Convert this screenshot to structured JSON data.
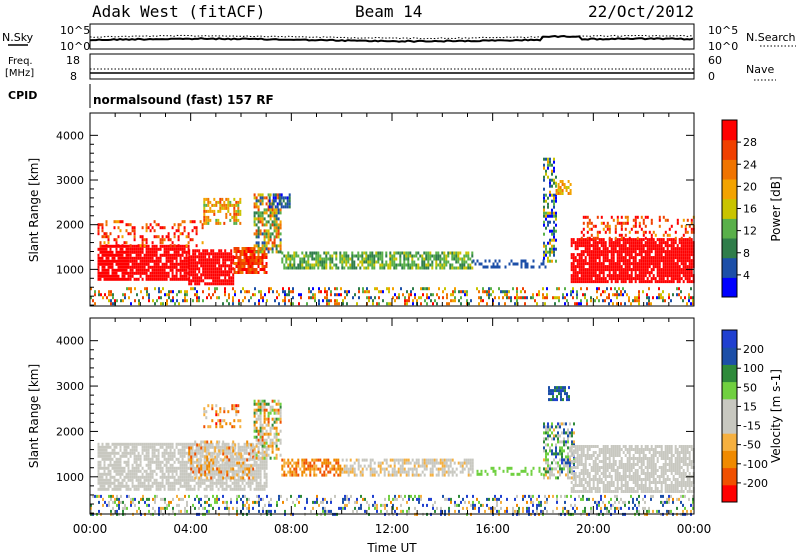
{
  "header": {
    "station": "Adak West (fitACF)",
    "beam": "Beam 14",
    "date": "22/Oct/2012"
  },
  "top_panels": {
    "nsky_label": "N.Sky",
    "nsky_ticks": [
      "10^5",
      "10^0"
    ],
    "nsearch_label": "N.Search",
    "nsearch_ticks": [
      "10^5",
      "10^0"
    ],
    "freq_label_1": "Freq.",
    "freq_label_2": "[MHz]",
    "freq_ticks": [
      "18",
      "8"
    ],
    "nave_label": "Nave",
    "nave_ticks": [
      "60",
      "0"
    ],
    "cpid_label": "CPID",
    "cpid_text": "normalsound (fast) 157 RF"
  },
  "colors": {
    "power": [
      "#0000ff",
      "#1c4fa8",
      "#2f7d4a",
      "#59b04a",
      "#c9c400",
      "#f3a300",
      "#f07400",
      "#f04000",
      "#ff0000"
    ],
    "velocity": [
      "#ff0000",
      "#f05000",
      "#f08a00",
      "#f5b040",
      "#c8c8c0",
      "#c8c8c0",
      "#70d040",
      "#2e8a3a",
      "#1c4fa8",
      "#2040d0"
    ]
  },
  "chart_data": [
    {
      "type": "heatmap",
      "panel": "power",
      "ylabel": "Slant Range [km]",
      "yticks": [
        "1000",
        "2000",
        "3000",
        "4000"
      ],
      "ylim": [
        180,
        4500
      ],
      "xlim_hours": [
        0,
        24
      ],
      "colorbar_label": "Power [dB]",
      "colorbar_ticks": [
        "4",
        "8",
        "12",
        "16",
        "20",
        "24",
        "28"
      ],
      "regions": [
        {
          "x": [
            0.3,
            3.9
          ],
          "y": [
            750,
            1550
          ],
          "level": 8,
          "density": 0.85,
          "jitter": 0
        },
        {
          "x": [
            3.9,
            5.7
          ],
          "y": [
            700,
            1450
          ],
          "level": 8,
          "density": 0.85,
          "jitter": 0
        },
        {
          "x": [
            5.7,
            7.0
          ],
          "y": [
            900,
            1500
          ],
          "level": 7,
          "density": 0.8,
          "jitter": 1
        },
        {
          "x": [
            0.3,
            4.5
          ],
          "y": [
            1550,
            2100
          ],
          "level": 7,
          "density": 0.3,
          "jitter": 2
        },
        {
          "x": [
            4.5,
            6.0
          ],
          "y": [
            2000,
            2600
          ],
          "level": 5,
          "density": 0.5,
          "jitter": 2
        },
        {
          "x": [
            6.5,
            7.6
          ],
          "y": [
            1400,
            2700
          ],
          "level": 4,
          "density": 0.65,
          "jitter": 3
        },
        {
          "x": [
            7.1,
            7.9
          ],
          "y": [
            2400,
            2700
          ],
          "level": 1,
          "density": 0.7,
          "jitter": 1
        },
        {
          "x": [
            7.6,
            15.2
          ],
          "y": [
            1050,
            1400
          ],
          "level": 3,
          "density": 0.7,
          "jitter": 1
        },
        {
          "x": [
            15.2,
            18.1
          ],
          "y": [
            1080,
            1220
          ],
          "level": 1,
          "density": 0.4,
          "jitter": 0
        },
        {
          "x": [
            18.0,
            18.5
          ],
          "y": [
            1200,
            3500
          ],
          "level": 2,
          "density": 0.5,
          "jitter": 3
        },
        {
          "x": [
            18.5,
            19.1
          ],
          "y": [
            2700,
            3000
          ],
          "level": 5,
          "density": 0.6,
          "jitter": 1
        },
        {
          "x": [
            19.1,
            24.0
          ],
          "y": [
            700,
            1700
          ],
          "level": 8,
          "density": 0.85,
          "jitter": 0
        },
        {
          "x": [
            19.5,
            24.0
          ],
          "y": [
            1700,
            2200
          ],
          "level": 7,
          "density": 0.3,
          "jitter": 2
        },
        {
          "x": [
            0.0,
            24.0
          ],
          "y": [
            200,
            600
          ],
          "level": 4,
          "density": 0.3,
          "jitter": 4
        }
      ]
    },
    {
      "type": "heatmap",
      "panel": "velocity",
      "ylabel": "Slant Range [km]",
      "yticks": [
        "1000",
        "2000",
        "3000",
        "4000"
      ],
      "ylim": [
        180,
        4500
      ],
      "xlim_hours": [
        0,
        24
      ],
      "colorbar_label": "Velocity [m s-1]",
      "colorbar_ticks": [
        "200",
        "100",
        "50",
        "15",
        "-15",
        "-50",
        "-100",
        "-200"
      ],
      "regions": [
        {
          "x": [
            0.3,
            7.0
          ],
          "y": [
            750,
            1750
          ],
          "level": 4,
          "density": 0.75,
          "jitter": 0
        },
        {
          "x": [
            3.9,
            6.5
          ],
          "y": [
            1000,
            1800
          ],
          "level": 3,
          "density": 0.4,
          "jitter": 2
        },
        {
          "x": [
            4.5,
            6.0
          ],
          "y": [
            2100,
            2600
          ],
          "level": 2,
          "density": 0.3,
          "jitter": 2
        },
        {
          "x": [
            6.5,
            7.6
          ],
          "y": [
            1400,
            2700
          ],
          "level": 4,
          "density": 0.6,
          "jitter": 3
        },
        {
          "x": [
            7.6,
            10.0
          ],
          "y": [
            1050,
            1400
          ],
          "level": 2,
          "density": 0.6,
          "jitter": 1
        },
        {
          "x": [
            10.0,
            15.2
          ],
          "y": [
            1050,
            1400
          ],
          "level": 4,
          "density": 0.6,
          "jitter": 1
        },
        {
          "x": [
            15.2,
            18.1
          ],
          "y": [
            1080,
            1220
          ],
          "level": 6,
          "density": 0.4,
          "jitter": 0
        },
        {
          "x": [
            18.0,
            19.2
          ],
          "y": [
            1000,
            2200
          ],
          "level": 6,
          "density": 0.6,
          "jitter": 3
        },
        {
          "x": [
            18.2,
            19.0
          ],
          "y": [
            2700,
            3000
          ],
          "level": 8,
          "density": 0.6,
          "jitter": 1
        },
        {
          "x": [
            19.1,
            24.0
          ],
          "y": [
            700,
            1700
          ],
          "level": 4,
          "density": 0.75,
          "jitter": 0
        },
        {
          "x": [
            0.0,
            24.0
          ],
          "y": [
            200,
            600
          ],
          "level": 6,
          "density": 0.3,
          "jitter": 4
        }
      ]
    }
  ],
  "x_axis": {
    "ticks": [
      "00:00",
      "04:00",
      "08:00",
      "12:00",
      "16:00",
      "20:00",
      "00:00"
    ],
    "label": "Time UT"
  }
}
